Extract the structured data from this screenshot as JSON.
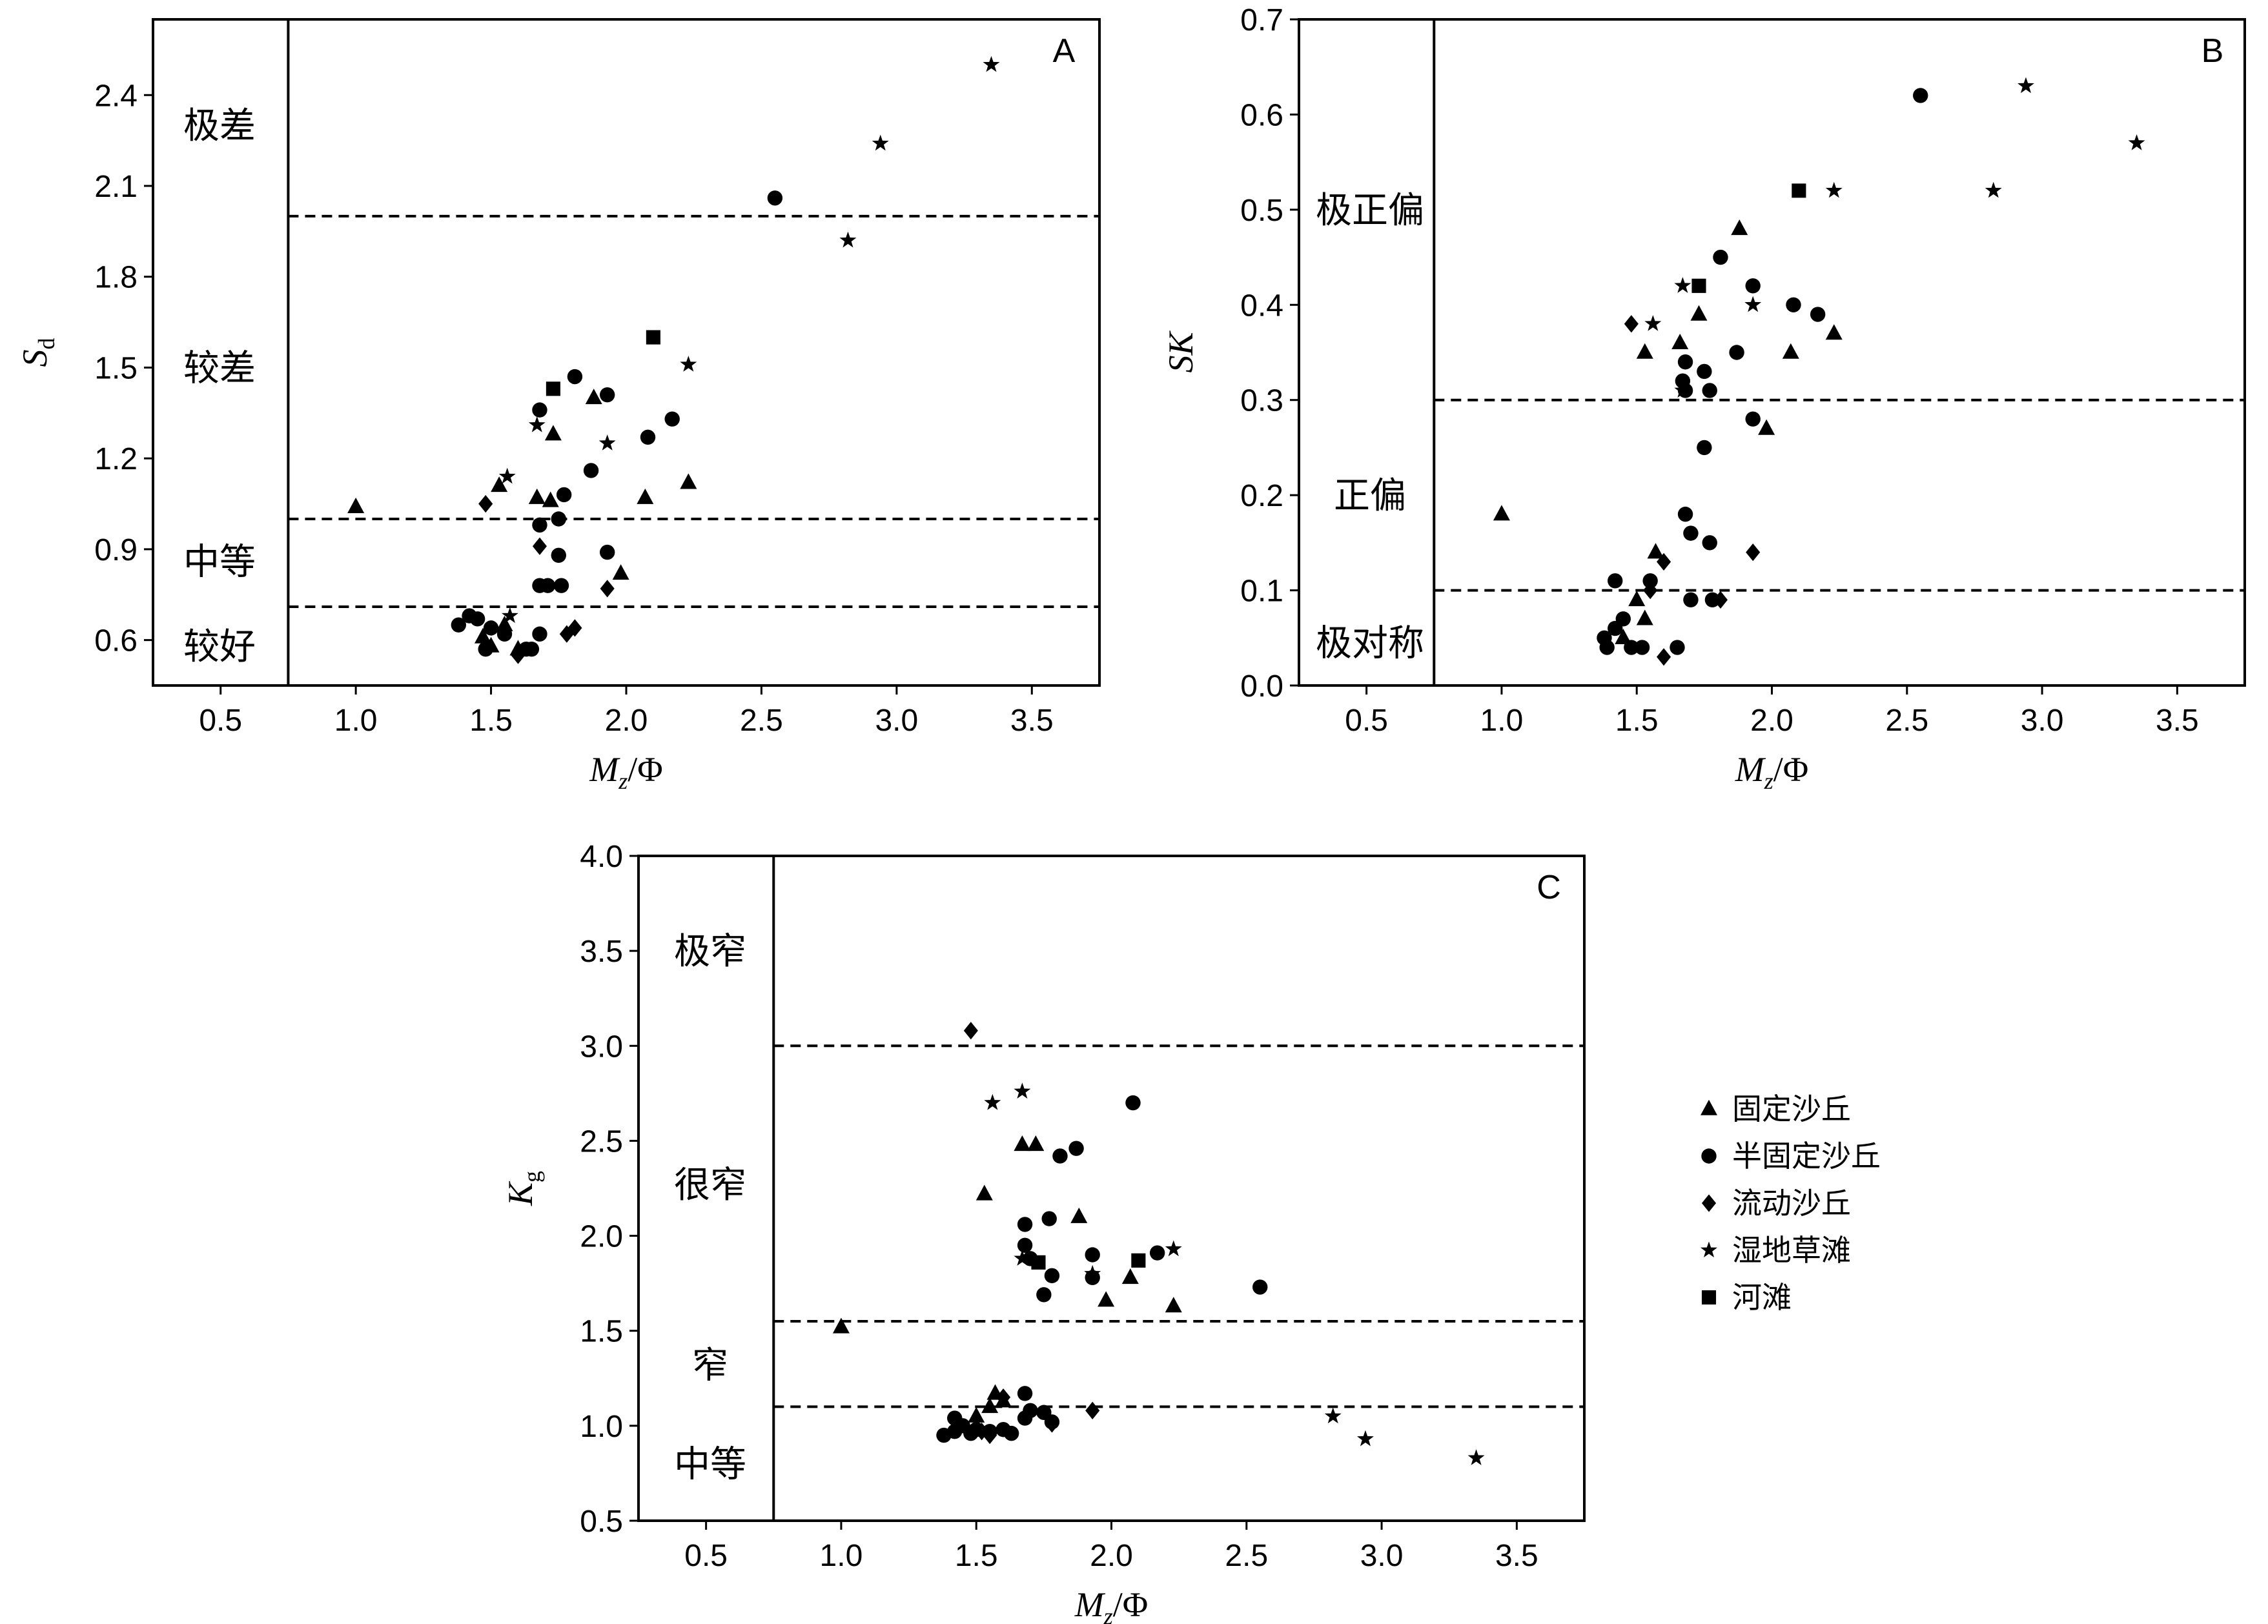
{
  "chart_data": [
    {
      "panel": "A",
      "type": "scatter",
      "xlabel": "Mz/Φ",
      "ylabel": "Sd",
      "xlim": [
        0.25,
        3.75
      ],
      "ylim": [
        0.45,
        2.65
      ],
      "xticks": [
        "0.5",
        "1.0",
        "1.5",
        "2.0",
        "2.5",
        "3.0",
        "3.5"
      ],
      "yticks": [
        "0.6",
        "0.9",
        "1.2",
        "1.5",
        "1.8",
        "2.1",
        "2.4"
      ],
      "grid": false,
      "vline_x": 0.75,
      "hlines": [
        2.0,
        1.0,
        0.71
      ],
      "zones": [
        {
          "label": "极差",
          "y": 2.3
        },
        {
          "label": "较差",
          "y": 1.5
        },
        {
          "label": "中等",
          "y": 0.86
        },
        {
          "label": "较好",
          "y": 0.58
        }
      ],
      "series": [
        {
          "name": "固定沙丘",
          "marker": "triangle",
          "points": [
            [
              1.0,
              1.04
            ],
            [
              1.53,
              1.11
            ],
            [
              1.67,
              1.07
            ],
            [
              1.72,
              1.06
            ],
            [
              1.73,
              1.28
            ],
            [
              1.88,
              1.4
            ],
            [
              1.98,
              0.82
            ],
            [
              2.07,
              1.07
            ],
            [
              2.23,
              1.12
            ],
            [
              1.47,
              0.61
            ],
            [
              1.5,
              0.58
            ],
            [
              1.55,
              0.65
            ],
            [
              1.6,
              0.57
            ]
          ]
        },
        {
          "name": "半固定沙丘",
          "marker": "circle",
          "points": [
            [
              1.68,
              1.36
            ],
            [
              1.81,
              1.47
            ],
            [
              1.93,
              1.41
            ],
            [
              2.08,
              1.27
            ],
            [
              2.17,
              1.33
            ],
            [
              1.87,
              1.16
            ],
            [
              1.77,
              1.08
            ],
            [
              1.68,
              0.98
            ],
            [
              1.75,
              1.0
            ],
            [
              1.75,
              0.88
            ],
            [
              1.93,
              0.89
            ],
            [
              1.68,
              0.78
            ],
            [
              1.71,
              0.78
            ],
            [
              1.76,
              0.78
            ],
            [
              1.38,
              0.65
            ],
            [
              1.42,
              0.68
            ],
            [
              1.45,
              0.67
            ],
            [
              1.5,
              0.64
            ],
            [
              1.55,
              0.62
            ],
            [
              1.48,
              0.57
            ],
            [
              1.63,
              0.57
            ],
            [
              1.65,
              0.57
            ],
            [
              1.68,
              0.62
            ],
            [
              2.55,
              2.06
            ]
          ]
        },
        {
          "name": "流动沙丘",
          "marker": "diamond",
          "points": [
            [
              1.48,
              1.05
            ],
            [
              1.68,
              0.91
            ],
            [
              1.93,
              0.77
            ],
            [
              1.78,
              0.62
            ],
            [
              1.81,
              0.64
            ],
            [
              1.6,
              0.55
            ]
          ]
        },
        {
          "name": "湿地草滩",
          "marker": "star",
          "points": [
            [
              3.35,
              2.5
            ],
            [
              2.94,
              2.24
            ],
            [
              2.82,
              1.92
            ],
            [
              2.23,
              1.51
            ],
            [
              1.93,
              1.25
            ],
            [
              1.56,
              1.14
            ],
            [
              1.67,
              1.31
            ],
            [
              1.57,
              0.68
            ]
          ]
        },
        {
          "name": "河滩",
          "marker": "square",
          "points": [
            [
              2.1,
              1.6
            ],
            [
              1.73,
              1.43
            ]
          ]
        }
      ]
    },
    {
      "panel": "B",
      "type": "scatter",
      "xlabel": "Mz/Φ",
      "ylabel": "SK",
      "xlim": [
        0.25,
        3.75
      ],
      "ylim": [
        0.0,
        0.7
      ],
      "xticks": [
        "0.5",
        "1.0",
        "1.5",
        "2.0",
        "2.5",
        "3.0",
        "3.5"
      ],
      "yticks": [
        "0.0",
        "0.1",
        "0.2",
        "0.3",
        "0.4",
        "0.5",
        "0.6",
        "0.7"
      ],
      "grid": false,
      "vline_x": 0.75,
      "hlines": [
        0.3,
        0.1
      ],
      "zones": [
        {
          "label": "极正偏",
          "y": 0.5
        },
        {
          "label": "正偏",
          "y": 0.2
        },
        {
          "label": "极对称",
          "y": 0.045
        }
      ],
      "series": [
        {
          "name": "固定沙丘",
          "marker": "triangle",
          "points": [
            [
              1.0,
              0.18
            ],
            [
              1.88,
              0.48
            ],
            [
              1.73,
              0.39
            ],
            [
              1.66,
              0.36
            ],
            [
              1.53,
              0.35
            ],
            [
              2.07,
              0.35
            ],
            [
              2.23,
              0.37
            ],
            [
              1.98,
              0.27
            ],
            [
              1.57,
              0.14
            ],
            [
              1.5,
              0.09
            ],
            [
              1.53,
              0.07
            ],
            [
              1.45,
              0.05
            ]
          ]
        },
        {
          "name": "半固定沙丘",
          "marker": "circle",
          "points": [
            [
              2.55,
              0.62
            ],
            [
              1.81,
              0.45
            ],
            [
              1.93,
              0.42
            ],
            [
              2.08,
              0.4
            ],
            [
              2.17,
              0.39
            ],
            [
              1.87,
              0.35
            ],
            [
              1.68,
              0.34
            ],
            [
              1.75,
              0.33
            ],
            [
              1.67,
              0.32
            ],
            [
              1.68,
              0.31
            ],
            [
              1.77,
              0.31
            ],
            [
              1.93,
              0.28
            ],
            [
              1.75,
              0.25
            ],
            [
              1.68,
              0.18
            ],
            [
              1.7,
              0.16
            ],
            [
              1.77,
              0.15
            ],
            [
              1.42,
              0.11
            ],
            [
              1.55,
              0.11
            ],
            [
              1.7,
              0.09
            ],
            [
              1.78,
              0.09
            ],
            [
              1.38,
              0.05
            ],
            [
              1.42,
              0.06
            ],
            [
              1.45,
              0.07
            ],
            [
              1.39,
              0.04
            ],
            [
              1.48,
              0.04
            ],
            [
              1.52,
              0.04
            ],
            [
              1.65,
              0.04
            ]
          ]
        },
        {
          "name": "流动沙丘",
          "marker": "diamond",
          "points": [
            [
              1.48,
              0.38
            ],
            [
              1.93,
              0.14
            ],
            [
              1.6,
              0.13
            ],
            [
              1.81,
              0.09
            ],
            [
              1.55,
              0.1
            ],
            [
              1.6,
              0.03
            ]
          ]
        },
        {
          "name": "湿地草滩",
          "marker": "star",
          "points": [
            [
              2.94,
              0.63
            ],
            [
              3.35,
              0.57
            ],
            [
              2.82,
              0.52
            ],
            [
              2.23,
              0.52
            ],
            [
              1.56,
              0.38
            ],
            [
              1.67,
              0.42
            ],
            [
              1.93,
              0.4
            ],
            [
              1.67,
              0.31
            ]
          ]
        },
        {
          "name": "河滩",
          "marker": "square",
          "points": [
            [
              2.1,
              0.52
            ],
            [
              1.73,
              0.42
            ]
          ]
        }
      ]
    },
    {
      "panel": "C",
      "type": "scatter",
      "xlabel": "Mz/Φ",
      "ylabel": "Kg",
      "xlim": [
        0.25,
        3.75
      ],
      "ylim": [
        0.5,
        4.0
      ],
      "xticks": [
        "0.5",
        "1.0",
        "1.5",
        "2.0",
        "2.5",
        "3.0",
        "3.5"
      ],
      "yticks": [
        "0.5",
        "1.0",
        "1.5",
        "2.0",
        "2.5",
        "3.0",
        "3.5",
        "4.0"
      ],
      "grid": false,
      "vline_x": 0.75,
      "hlines": [
        3.0,
        1.55,
        1.1
      ],
      "zones": [
        {
          "label": "极窄",
          "y": 3.5
        },
        {
          "label": "很窄",
          "y": 2.27
        },
        {
          "label": "窄",
          "y": 1.32
        },
        {
          "label": "中等",
          "y": 0.8
        }
      ],
      "legend_position": "right",
      "series": [
        {
          "name": "固定沙丘",
          "marker": "triangle",
          "points": [
            [
              1.0,
              1.52
            ],
            [
              1.53,
              2.22
            ],
            [
              1.67,
              2.48
            ],
            [
              1.72,
              2.48
            ],
            [
              1.88,
              2.1
            ],
            [
              2.07,
              1.78
            ],
            [
              1.98,
              1.66
            ],
            [
              2.23,
              1.63
            ],
            [
              1.57,
              1.17
            ],
            [
              1.5,
              1.05
            ],
            [
              1.55,
              1.1
            ],
            [
              1.6,
              1.13
            ]
          ]
        },
        {
          "name": "半固定沙丘",
          "marker": "circle",
          "points": [
            [
              2.08,
              2.7
            ],
            [
              1.87,
              2.46
            ],
            [
              1.81,
              2.42
            ],
            [
              1.77,
              2.09
            ],
            [
              1.68,
              2.06
            ],
            [
              1.68,
              1.95
            ],
            [
              1.7,
              1.88
            ],
            [
              1.93,
              1.9
            ],
            [
              2.17,
              1.91
            ],
            [
              1.93,
              1.78
            ],
            [
              1.78,
              1.79
            ],
            [
              1.75,
              1.69
            ],
            [
              2.55,
              1.73
            ],
            [
              1.38,
              0.95
            ],
            [
              1.42,
              0.97
            ],
            [
              1.45,
              1.0
            ],
            [
              1.42,
              1.04
            ],
            [
              1.48,
              0.96
            ],
            [
              1.5,
              0.98
            ],
            [
              1.55,
              0.97
            ],
            [
              1.6,
              0.98
            ],
            [
              1.63,
              0.96
            ],
            [
              1.68,
              1.04
            ],
            [
              1.7,
              1.08
            ],
            [
              1.68,
              1.17
            ],
            [
              1.75,
              1.07
            ],
            [
              1.78,
              1.02
            ]
          ]
        },
        {
          "name": "流动沙丘",
          "marker": "diamond",
          "points": [
            [
              1.48,
              3.08
            ],
            [
              1.93,
              1.08
            ],
            [
              1.6,
              1.15
            ],
            [
              1.78,
              1.01
            ],
            [
              1.52,
              0.97
            ],
            [
              1.55,
              0.95
            ]
          ]
        },
        {
          "name": "湿地草滩",
          "marker": "star",
          "points": [
            [
              1.67,
              2.76
            ],
            [
              1.56,
              2.7
            ],
            [
              2.23,
              1.93
            ],
            [
              1.67,
              1.88
            ],
            [
              1.93,
              1.8
            ],
            [
              2.82,
              1.05
            ],
            [
              2.94,
              0.93
            ],
            [
              3.35,
              0.83
            ]
          ]
        },
        {
          "name": "河滩",
          "marker": "square",
          "points": [
            [
              2.1,
              1.87
            ],
            [
              1.73,
              1.86
            ]
          ]
        }
      ]
    }
  ]
}
